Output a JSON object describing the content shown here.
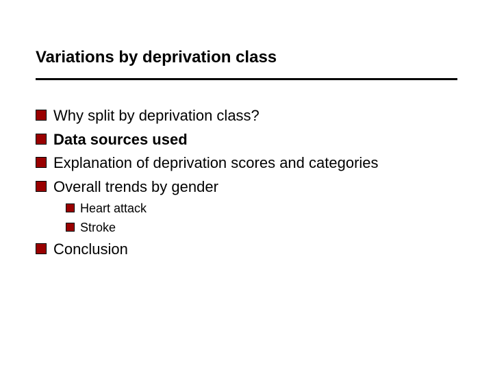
{
  "slide": {
    "title": "Variations by deprivation class",
    "bullet_color": "#990000",
    "bullet_border": "#000000",
    "divider_color": "#000000",
    "title_fontsize": 24,
    "bullet_fontsize": 22,
    "sub_fontsize": 18,
    "background": "#ffffff",
    "bullets": [
      {
        "text": "Why split by deprivation class?",
        "bold": false
      },
      {
        "text": "Data sources used",
        "bold": true
      },
      {
        "text": "Explanation of deprivation scores and categories",
        "bold": false
      },
      {
        "text": "Overall trends by gender",
        "bold": false
      }
    ],
    "sub_bullets": [
      {
        "text": "Heart attack"
      },
      {
        "text": "Stroke"
      }
    ],
    "final_bullets": [
      {
        "text": "Conclusion",
        "bold": false
      }
    ]
  }
}
